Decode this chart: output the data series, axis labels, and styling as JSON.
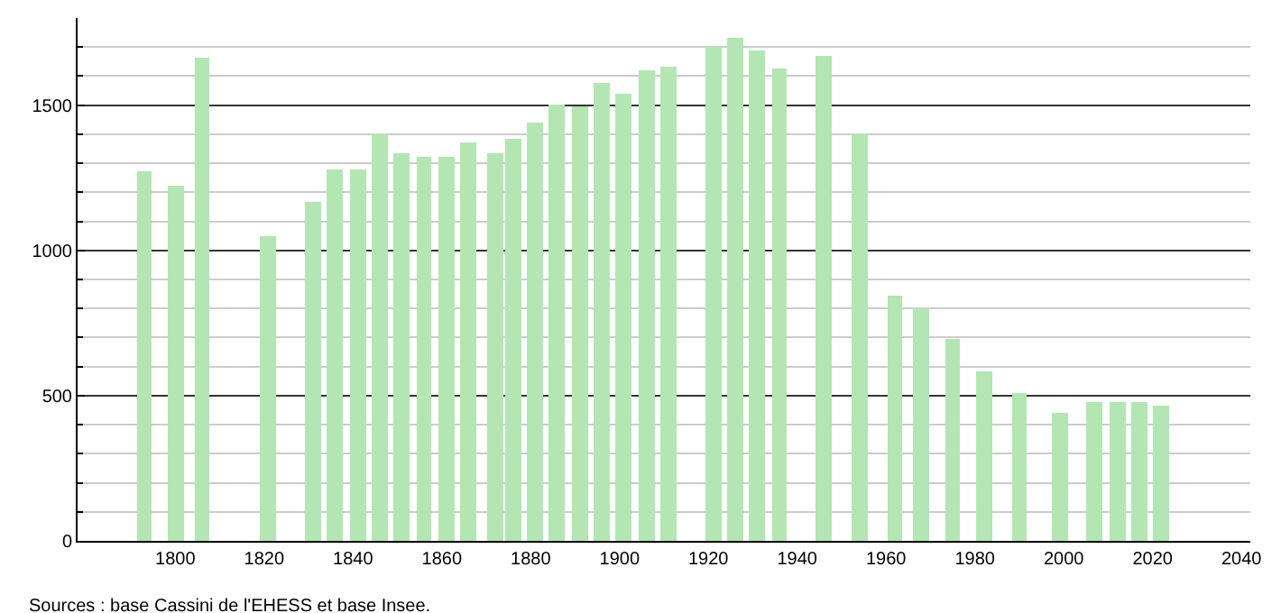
{
  "chart_data": {
    "type": "bar",
    "x": [
      1793,
      1800,
      1806,
      1821,
      1831,
      1836,
      1841,
      1846,
      1851,
      1856,
      1861,
      1866,
      1872,
      1876,
      1881,
      1886,
      1891,
      1896,
      1901,
      1906,
      1911,
      1921,
      1926,
      1931,
      1936,
      1946,
      1954,
      1962,
      1968,
      1975,
      1982,
      1990,
      1999,
      2007,
      2012,
      2017,
      2022
    ],
    "values": [
      1275,
      1225,
      1662,
      1052,
      1167,
      1279,
      1279,
      1404,
      1337,
      1325,
      1323,
      1373,
      1333,
      1385,
      1437,
      1500,
      1494,
      1579,
      1537,
      1619,
      1635,
      1702,
      1729,
      1688,
      1629,
      1667,
      1400,
      846,
      798,
      698,
      581,
      510,
      442,
      481,
      475,
      481,
      467
    ],
    "color": "#b3e6b3",
    "xlim": [
      1778,
      2042
    ],
    "xticks": [
      1800,
      1820,
      1840,
      1860,
      1880,
      1900,
      1920,
      1940,
      1960,
      1980,
      2000,
      2020,
      2040
    ],
    "ylim": [
      0,
      1800
    ],
    "yticks": [
      0,
      500,
      1000,
      1500
    ],
    "grid": "y",
    "legend": false,
    "annotations": [
      "Sources : base Cassini de l'EHESS et base Insee."
    ]
  }
}
